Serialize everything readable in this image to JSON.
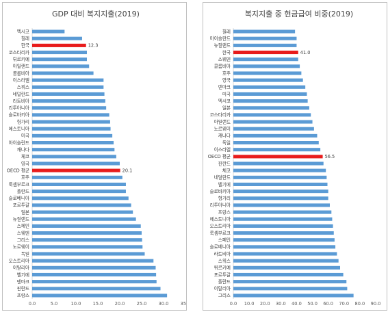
{
  "colors": {
    "bar": "#5b9bd5",
    "highlight": "#e81c1c",
    "axis": "#d9d9d9",
    "text": "#404040"
  },
  "chart_data": [
    {
      "type": "bar",
      "orientation": "horizontal",
      "title": "GDP 대비 복지지출(2019)",
      "categories": [
        "멕시코",
        "칠레",
        "한국",
        "코스타리카",
        "튀르키예",
        "아일랜드",
        "콜롬비아",
        "이스라엘",
        "스위스",
        "네덜란드",
        "라트비아",
        "리투아니아",
        "슬로바키아",
        "헝가리",
        "에스토니아",
        "미국",
        "아이슬란드",
        "캐나다",
        "체코",
        "영국",
        "OECD 평균",
        "호주",
        "룩셈부르크",
        "폴란드",
        "슬로베니아",
        "포르투갈",
        "일본",
        "뉴질랜드",
        "스페인",
        "스웨덴",
        "그리스",
        "노르웨이",
        "독일",
        "오스트리아",
        "이탈리아",
        "벨기에",
        "덴마크",
        "핀란드",
        "프랑스"
      ],
      "values": [
        7.4,
        11.4,
        12.3,
        12.5,
        12.5,
        13.0,
        14.0,
        16.3,
        16.3,
        16.5,
        16.7,
        16.9,
        17.6,
        17.8,
        17.9,
        18.3,
        18.6,
        18.8,
        19.2,
        20.0,
        20.1,
        20.6,
        21.4,
        21.4,
        22.0,
        22.6,
        23.0,
        23.7,
        24.8,
        25.0,
        25.1,
        25.2,
        25.7,
        27.7,
        28.2,
        28.3,
        28.4,
        29.3,
        30.8
      ],
      "highlighted": [
        "한국",
        "OECD 평균"
      ],
      "data_labels": {
        "한국": "12.3",
        "OECD 평균": "20.1"
      },
      "xlim": [
        0,
        35
      ],
      "xticks": [
        "0.0",
        "5.0",
        "10.0",
        "15.0",
        "20.0",
        "25.0",
        "30.0",
        "35.0"
      ],
      "grid": false
    },
    {
      "type": "bar",
      "orientation": "horizontal",
      "title": "복지지출 중 현금급여 비중(2019)",
      "categories": [
        "칠레",
        "아이슬란드",
        "뉴질랜드",
        "한국",
        "스웨덴",
        "콜롬비아",
        "호주",
        "영국",
        "덴마크",
        "미국",
        "멕시코",
        "일본",
        "코스타리카",
        "아일랜드",
        "노르웨이",
        "캐나다",
        "독일",
        "이스라엘",
        "OECD 평균",
        "핀란드",
        "체코",
        "네덜란드",
        "벨기에",
        "슬로바키아",
        "헝가리",
        "리투아니아",
        "프랑스",
        "에스토니아",
        "오스트리아",
        "룩셈부르크",
        "스페인",
        "슬로베니아",
        "라트비아",
        "스위스",
        "튀르키예",
        "포르투갈",
        "폴란드",
        "이탈리아",
        "그리스"
      ],
      "values": [
        39.0,
        40.0,
        40.0,
        41.0,
        41.0,
        42.0,
        43.0,
        44.0,
        45.5,
        46.5,
        47.0,
        48.0,
        49.0,
        50.0,
        51.0,
        53.0,
        54.0,
        55.0,
        56.5,
        57.0,
        58.5,
        59.0,
        59.5,
        60.0,
        60.0,
        61.0,
        62.0,
        62.5,
        63.0,
        63.5,
        64.0,
        64.5,
        65.5,
        66.5,
        67.5,
        69.5,
        71.5,
        72.0,
        76.0
      ],
      "highlighted": [
        "한국",
        "OECD 평균"
      ],
      "data_labels": {
        "한국": "41.0",
        "OECD 평균": "56.5"
      },
      "xlim": [
        0,
        90
      ],
      "xticks": [
        "0.0",
        "10.0",
        "20.0",
        "30.0",
        "40.0",
        "50.0",
        "60.0",
        "70.0",
        "80.0",
        "90.0"
      ],
      "grid": false
    }
  ]
}
